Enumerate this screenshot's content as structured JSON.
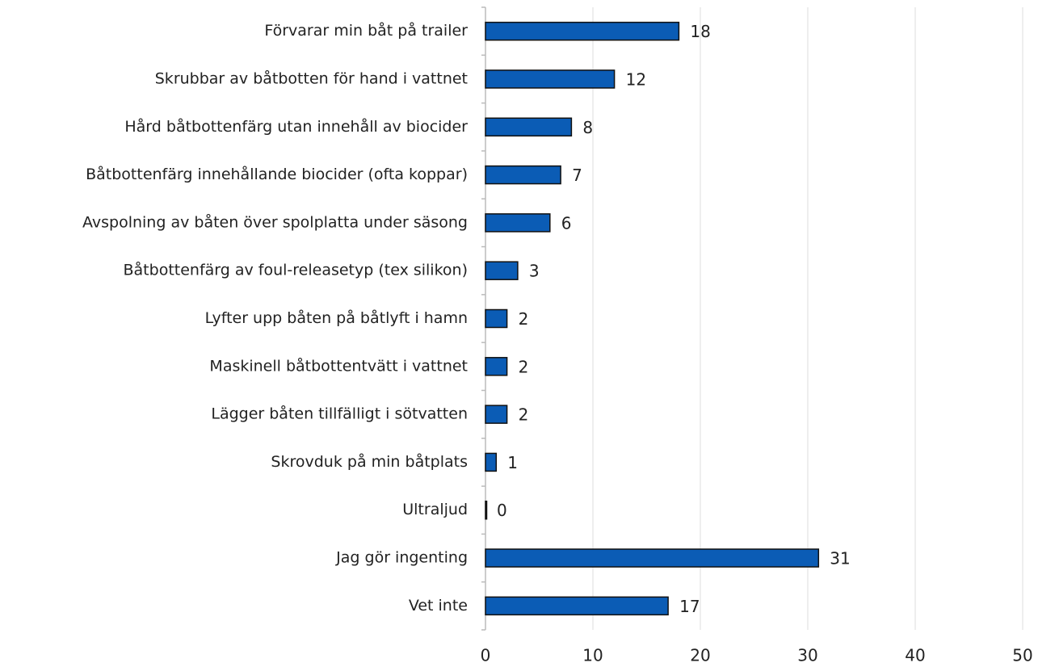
{
  "chart_data": {
    "type": "barh",
    "categories": [
      "Förvarar min båt på trailer",
      "Skrubbar av båtbotten för hand i vattnet",
      "Hård båtbottenfärg utan innehåll av biocider",
      "Båtbottenfärg innehållande biocider (ofta koppar)",
      "Avspolning av båten över spolplatta under säsong",
      "Båtbottenfärg av foul-releasetyp (tex silikon)",
      "Lyfter upp båten på båtlyft i hamn",
      "Maskinell båtbottentvätt i vattnet",
      "Lägger båten tillfälligt i sötvatten",
      "Skrovduk på min båtplats",
      "Ultraljud",
      "Jag gör ingenting",
      "Vet inte"
    ],
    "values": [
      18,
      12,
      8,
      7,
      6,
      3,
      2,
      2,
      2,
      1,
      0,
      31,
      17
    ],
    "color": "#0b5cb5",
    "xlim": [
      0,
      50
    ],
    "xticks": [
      0,
      10,
      20,
      30,
      40,
      50
    ],
    "grid": true
  }
}
